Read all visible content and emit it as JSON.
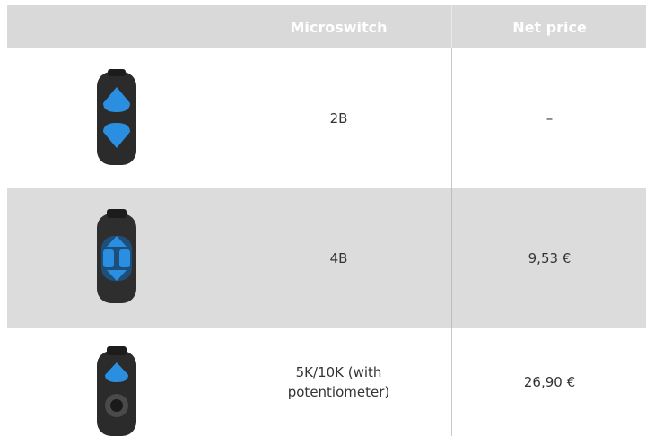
{
  "table": {
    "header": [
      "Microswitch",
      "Net price"
    ],
    "rows": [
      [
        "2B",
        "–"
      ],
      [
        "4B",
        "9,53 €"
      ],
      [
        "5K/10K (with potentiometer)",
        "26,90 €"
      ]
    ]
  }
}
